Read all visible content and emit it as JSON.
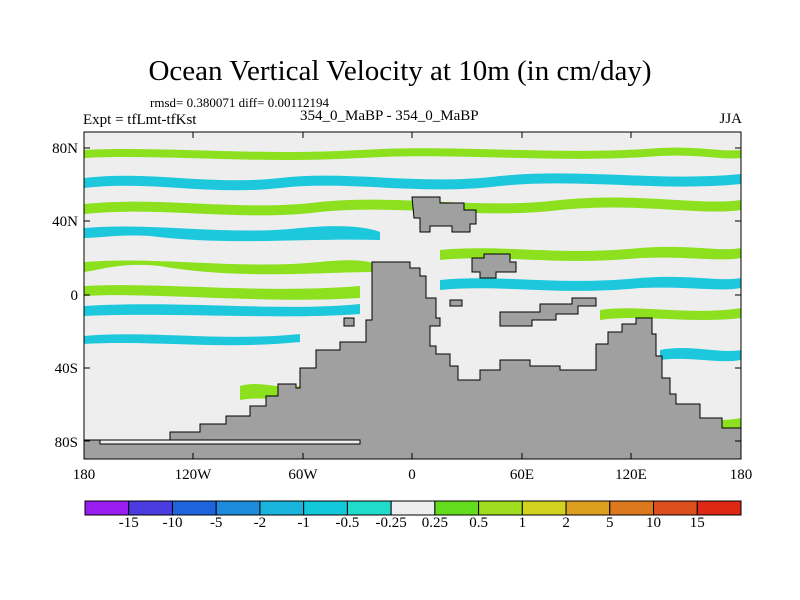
{
  "title": "Ocean Vertical Velocity at 10m (in cm/day)",
  "stats": "rmsd= 0.380071 diff= 0.00112194",
  "expt": "Expt = tfLmt-tfKst",
  "center": "354_0_MaBP - 354_0_MaBP",
  "season": "JJA",
  "lat_ticks": [
    "80N",
    "40N",
    "0",
    "40S",
    "80S"
  ],
  "lon_ticks": [
    "180",
    "120W",
    "60W",
    "0",
    "60E",
    "120E",
    "180"
  ],
  "colorbar": {
    "labels": [
      "-15",
      "-10",
      "-5",
      "-2",
      "-1",
      "-0.5",
      "-0.25",
      "0.25",
      "0.5",
      "1",
      "2",
      "5",
      "10",
      "15"
    ],
    "colors": [
      "#9a1ef0",
      "#4a3ce0",
      "#1e64dc",
      "#1e8cdc",
      "#18b4dc",
      "#14c8dc",
      "#20dcc8",
      "#eeeeee",
      "#64dc1e",
      "#a0dc1e",
      "#d2d21e",
      "#dca01e",
      "#dc781e",
      "#dc501e",
      "#dc2814"
    ]
  },
  "legend_colors": {
    "land": "#a0a0a0",
    "neutral": "#eeeeee",
    "ocean_pos": "#8ce01e",
    "ocean_neg": "#1ec8dc"
  }
}
